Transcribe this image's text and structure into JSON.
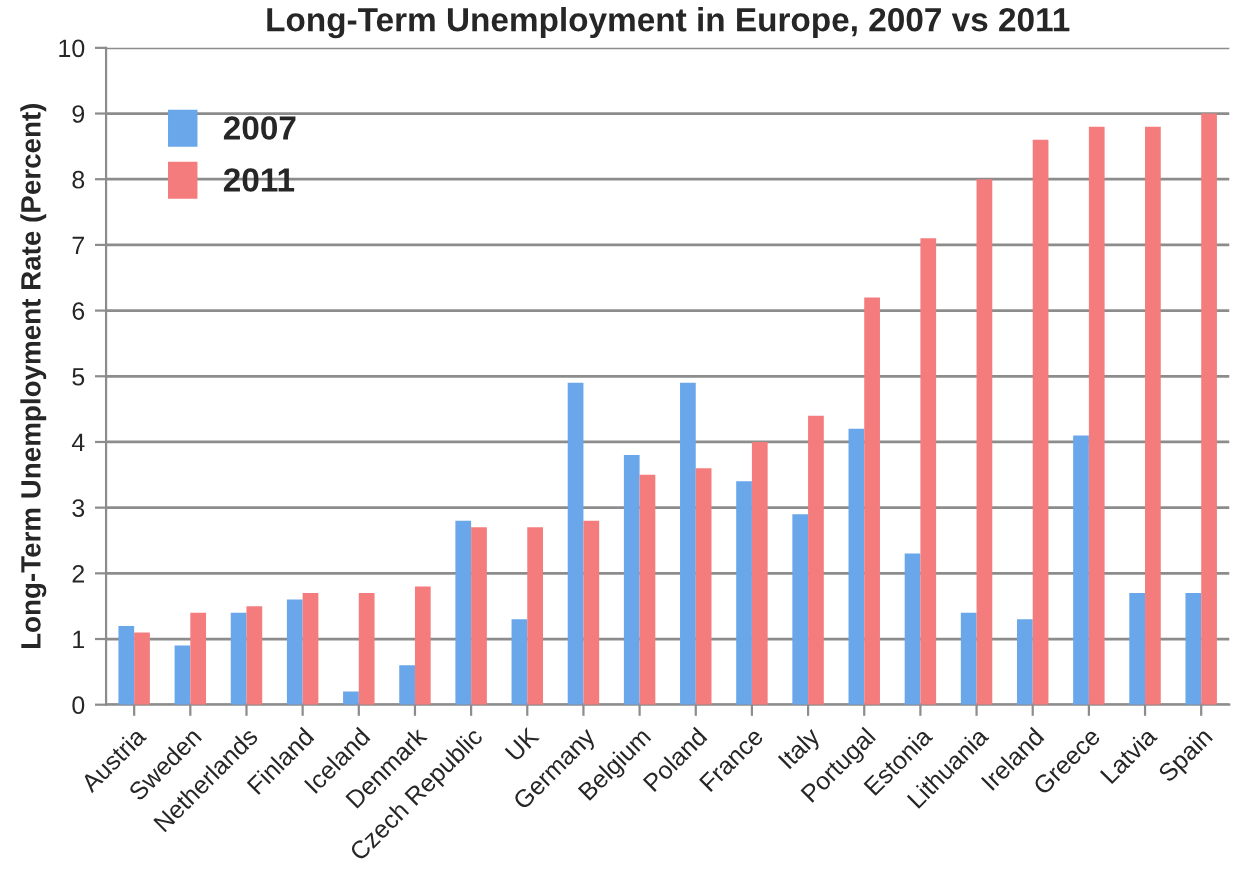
{
  "chart_data": {
    "type": "bar",
    "title": "Long-Term Unemployment in Europe, 2007 vs 2011",
    "ylabel": "Long-Term Unemployment Rate (Percent)",
    "categories": [
      "Austria",
      "Sweden",
      "Netherlands",
      "Finland",
      "Iceland",
      "Denmark",
      "Czech Republic",
      "UK",
      "Germany",
      "Belgium",
      "Poland",
      "France",
      "Italy",
      "Portugal",
      "Estonia",
      "Lithuania",
      "Ireland",
      "Greece",
      "Latvia",
      "Spain"
    ],
    "series": [
      {
        "name": "2007",
        "color": "#6aa6ea",
        "values": [
          1.2,
          0.9,
          1.4,
          1.6,
          0.2,
          0.6,
          2.8,
          1.3,
          4.9,
          3.8,
          4.9,
          3.4,
          2.9,
          4.2,
          2.3,
          1.4,
          1.3,
          4.1,
          1.7,
          1.7
        ]
      },
      {
        "name": "2011",
        "color": "#f47c7c",
        "values": [
          1.1,
          1.4,
          1.5,
          1.7,
          1.7,
          1.8,
          2.7,
          2.7,
          2.8,
          3.5,
          3.6,
          4.0,
          4.4,
          6.2,
          7.1,
          8.0,
          8.6,
          8.8,
          8.8,
          9.0
        ]
      }
    ],
    "ylim": [
      0,
      10
    ],
    "yticks": [
      0,
      1,
      2,
      3,
      4,
      5,
      6,
      7,
      8,
      9,
      10
    ],
    "grid": "y",
    "legend": "top left"
  }
}
